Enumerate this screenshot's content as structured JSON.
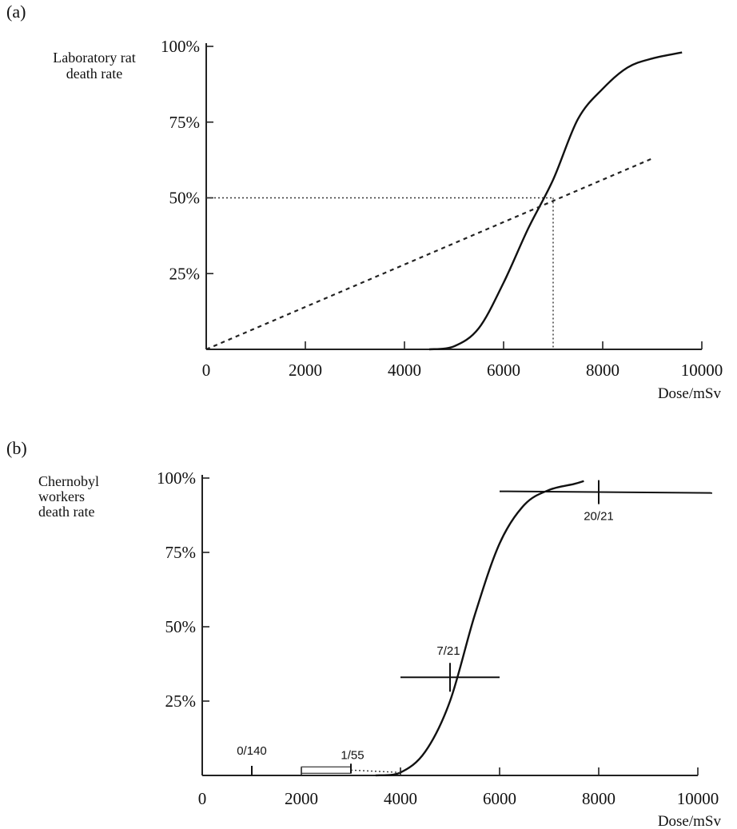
{
  "chart_data": [
    {
      "panel_label": "(a)",
      "type": "line",
      "ylabel_lines": [
        "Laboratory rat",
        "death rate"
      ],
      "xlabel": "Dose/mSv",
      "xlim": [
        0,
        10000
      ],
      "ylim": [
        0,
        100
      ],
      "x_ticks": [
        0,
        2000,
        4000,
        6000,
        8000,
        10000
      ],
      "x_tick_labels": [
        "0",
        "2000",
        "4000",
        "6000",
        "8000",
        "10000"
      ],
      "y_ticks": [
        25,
        50,
        75,
        100
      ],
      "y_tick_labels": [
        "25%",
        "50%",
        "75%",
        "100%"
      ],
      "series": [
        {
          "style": "solid",
          "x": [
            4500,
            5000,
            5500,
            6000,
            6500,
            7000,
            7500,
            8000,
            8500,
            9000,
            9600
          ],
          "y": [
            0,
            1,
            7,
            22,
            40,
            56,
            76,
            86,
            93,
            96,
            98
          ]
        },
        {
          "style": "dashed",
          "x": [
            0,
            9000
          ],
          "y": [
            0,
            63
          ]
        }
      ],
      "reference_lines": {
        "x": 7000,
        "y": 50,
        "style": "dotted"
      },
      "grid": false
    },
    {
      "panel_label": "(b)",
      "type": "line",
      "ylabel_lines": [
        "Chernobyl",
        "workers",
        "death rate"
      ],
      "xlabel": "Dose/mSv",
      "xlim": [
        0,
        10000
      ],
      "ylim": [
        0,
        100
      ],
      "x_ticks": [
        0,
        2000,
        4000,
        6000,
        8000,
        10000
      ],
      "x_tick_labels": [
        "0",
        "2000",
        "4000",
        "6000",
        "8000",
        "10000"
      ],
      "y_ticks": [
        25,
        50,
        75,
        100
      ],
      "y_tick_labels": [
        "25%",
        "50%",
        "75%",
        "100%"
      ],
      "series": [
        {
          "style": "solid",
          "x": [
            3500,
            4000,
            4500,
            5000,
            5500,
            6000,
            6500,
            7000,
            7500,
            7700
          ],
          "y": [
            0,
            1,
            8,
            25,
            54,
            78,
            91,
            96,
            98,
            99
          ]
        }
      ],
      "data_groups": [
        {
          "label": "0/140",
          "x": 1000,
          "y": 0
        },
        {
          "label": "1/55",
          "x": 3000,
          "y": 1.8,
          "x_range": [
            2000,
            4000
          ]
        },
        {
          "label": "7/21",
          "x": 5000,
          "y": 33,
          "x_range": [
            4000,
            6000
          ]
        },
        {
          "label": "20/21",
          "x": 8000,
          "y": 95,
          "x_range": [
            6000,
            10000
          ]
        }
      ],
      "grid": false
    }
  ]
}
